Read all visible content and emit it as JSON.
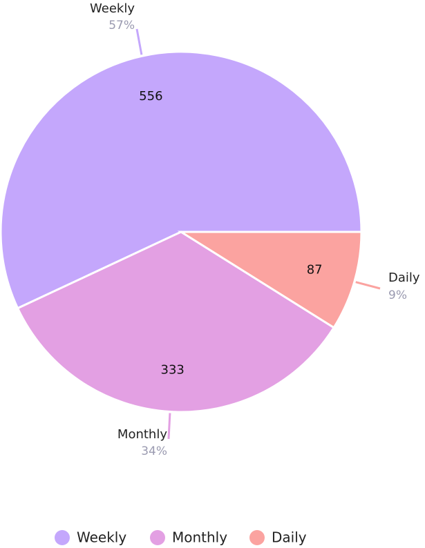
{
  "chart_data": {
    "type": "pie",
    "categories": [
      "Weekly",
      "Monthly",
      "Daily"
    ],
    "values": [
      556,
      333,
      87
    ],
    "percent_labels": [
      "57%",
      "34%",
      "9%"
    ],
    "colors": [
      "#c4a7fc",
      "#e3a0e3",
      "#fba3a0"
    ],
    "legend": "bottom"
  }
}
